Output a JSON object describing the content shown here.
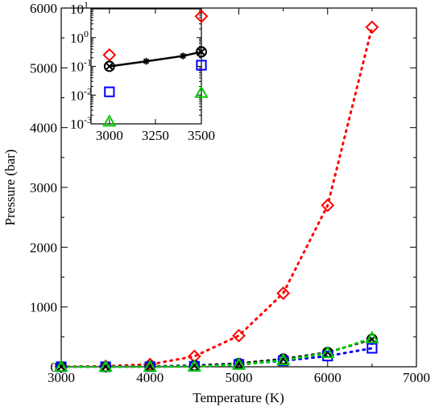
{
  "chart_data": [
    {
      "type": "scatter",
      "title": "",
      "xlabel": "Temperature (K)",
      "ylabel": "Pressure (bar)",
      "xlim": [
        3000,
        7000
      ],
      "ylim": [
        0,
        6000
      ],
      "xticks": [
        "3000",
        "4000",
        "5000",
        "6000",
        "7000"
      ],
      "yticks": [
        "0",
        "1000",
        "2000",
        "3000",
        "4000",
        "5000",
        "6000"
      ],
      "grid": false,
      "legend": "none",
      "series": [
        {
          "color": "#ff0000",
          "marker": "diamond",
          "line": "dotted",
          "x": [
            3000,
            3500,
            4000,
            4500,
            5000,
            5500,
            6000,
            6500
          ],
          "y": [
            3,
            10,
            40,
            175,
            520,
            1230,
            2700,
            5680
          ]
        },
        {
          "color": "#000000",
          "marker": "circle-x",
          "line": "dotted",
          "x": [
            3000,
            3500,
            4000,
            4500,
            5000,
            5500,
            6000,
            6500
          ],
          "y": [
            0.1,
            1,
            6,
            20,
            55,
            130,
            240,
            460
          ]
        },
        {
          "color": "#0000ff",
          "marker": "square",
          "line": "dotted",
          "x": [
            3000,
            3500,
            4000,
            4500,
            5000,
            5500,
            6000,
            6500
          ],
          "y": [
            0.01,
            0.1,
            1,
            8,
            40,
            100,
            180,
            310
          ]
        },
        {
          "color": "#00cc00",
          "marker": "triangle",
          "line": "dotted",
          "x": [
            3000,
            3500,
            4000,
            4500,
            5000,
            5500,
            6000,
            6500
          ],
          "y": [
            0.001,
            0.03,
            0.5,
            5,
            35,
            110,
            230,
            480
          ]
        }
      ]
    },
    {
      "type": "scatter",
      "title": "",
      "xlabel": "",
      "ylabel": "",
      "xlim": [
        2900,
        3500
      ],
      "ylog": true,
      "ylim_exp": [
        -3,
        1
      ],
      "xticks": [
        "3000",
        "3250",
        "3500"
      ],
      "ytick_exps": [
        "-3",
        "-2",
        "-1",
        "0",
        "1"
      ],
      "legend": "none",
      "series": [
        {
          "color": "#ff0000",
          "marker": "diamond",
          "x": [
            3000,
            3500
          ],
          "y": [
            0.25,
            5.5
          ]
        },
        {
          "color": "#000000",
          "marker": "circle-x",
          "line": "solid",
          "x": [
            3000,
            3500
          ],
          "y": [
            0.1,
            0.32
          ]
        },
        {
          "color": "#000000",
          "marker": "star",
          "line": "solid",
          "x": [
            3200,
            3400
          ],
          "y": [
            0.15,
            0.23
          ]
        },
        {
          "color": "#0000ff",
          "marker": "square",
          "x": [
            3000,
            3500
          ],
          "y": [
            0.013,
            0.11
          ]
        },
        {
          "color": "#00cc00",
          "marker": "triangle",
          "x": [
            3000,
            3500
          ],
          "y": [
            0.0012,
            0.012
          ]
        }
      ]
    }
  ]
}
